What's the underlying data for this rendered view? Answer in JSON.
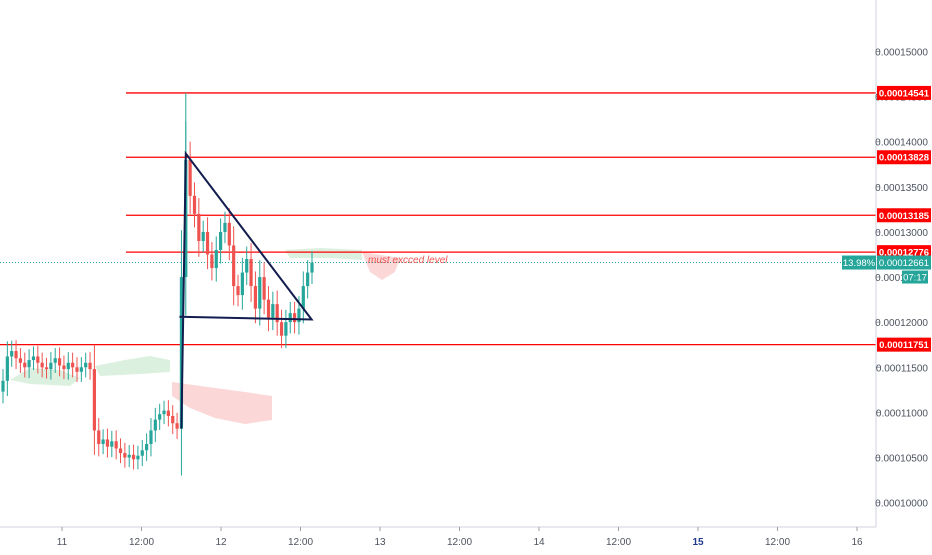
{
  "chart_data": {
    "type": "candlestick",
    "x_ticks": [
      "11",
      "12:00",
      "12",
      "12:00",
      "13",
      "12:00",
      "14",
      "12:00",
      "15",
      "12:00",
      "16"
    ],
    "y_ticks": [
      "0.00015000",
      "0.00014500",
      "0.00014000",
      "0.00013500",
      "0.00013000",
      "0.00012500",
      "0.00012000",
      "0.00011500",
      "0.00011000",
      "0.00010500",
      "0.00010000"
    ],
    "ylim": [
      9.63e-05,
      0.0001546
    ],
    "horizontal_levels": [
      {
        "value": 0.00014541,
        "label": "0.00014541"
      },
      {
        "value": 0.00013828,
        "label": "0.00013828"
      },
      {
        "value": 0.00013185,
        "label": "0.00013185"
      },
      {
        "value": 0.00012776,
        "label": "0.00012776"
      },
      {
        "value": 0.00011751,
        "label": "0.00011751"
      }
    ],
    "last_price": {
      "value": 0.00012661,
      "label": "0.00012661",
      "change": "13.98%",
      "countdown": "07:17"
    },
    "annotation": "must excced level",
    "colors": {
      "up": "#26a69a",
      "down": "#ef5350",
      "level": "#ff0000",
      "pattern": "#131c4f",
      "cloud_up": "#d8eedb",
      "cloud_down": "#fbd3d3"
    },
    "price_path": [
      0.0001135,
      0.0001162,
      0.0001168,
      0.000116,
      0.0001155,
      0.000115,
      0.0001158,
      0.0001162,
      0.0001155,
      0.000115,
      0.0001148,
      0.0001155,
      0.000116,
      0.0001152,
      0.0001148,
      0.0001155,
      0.000115,
      0.0001145,
      0.000115,
      0.0001155,
      0.0001148,
      0.000108,
      0.0001065,
      0.000107,
      0.0001062,
      0.0001068,
      0.000106,
      0.0001055,
      0.000105,
      0.0001053,
      0.0001048,
      0.0001052,
      0.0001058,
      0.0001065,
      0.000108,
      0.0001092,
      0.0001098,
      0.0001102,
      0.0001096,
      0.0001088,
      0.0001082,
      0.000125,
      0.000138,
      0.000134,
      0.000132,
      0.000129,
      0.00013,
      0.0001275,
      0.000126,
      0.000128,
      0.00013,
      0.000131,
      0.0001285,
      0.000124,
      0.000123,
      0.0001255,
      0.000127,
      0.000124,
      0.0001215,
      0.000125,
      0.0001225,
      0.0001205,
      0.000122,
      0.00012,
      0.0001185,
      0.00012,
      0.000121,
      0.00012,
      0.0001215,
      0.000124,
      0.0001255,
      0.0001266
    ]
  }
}
